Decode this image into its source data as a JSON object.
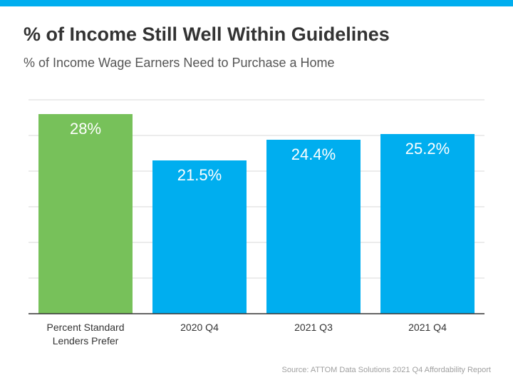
{
  "header": {
    "title": "% of Income Still Well Within Guidelines",
    "subtitle": "% of Income Wage Earners Need to Purchase a Home"
  },
  "source": "Source: ATTOM Data Solutions 2021 Q4 Affordability Report",
  "colors": {
    "accent": "#00aeef",
    "highlight": "#77c15a",
    "bar": "#00aeef",
    "grid": "#d9d9d9",
    "axis": "#333333"
  },
  "chart_data": {
    "type": "bar",
    "title": "% of Income Still Well Within Guidelines",
    "subtitle": "% of Income Wage Earners Need to Purchase a Home",
    "categories": [
      "Percent Standard Lenders Prefer",
      "2020 Q4",
      "2021 Q3",
      "2021 Q4"
    ],
    "category_lines": [
      [
        "Percent Standard",
        "Lenders Prefer"
      ],
      [
        "2020 Q4"
      ],
      [
        "2021 Q3"
      ],
      [
        "2021 Q4"
      ]
    ],
    "values": [
      28,
      21.5,
      24.4,
      25.2
    ],
    "labels": [
      "28%",
      "21.5%",
      "24.4%",
      "25.2%"
    ],
    "bar_colors": [
      "#77c15a",
      "#00aeef",
      "#00aeef",
      "#00aeef"
    ],
    "ylim": [
      0,
      30
    ],
    "grid": true,
    "legend": "none"
  }
}
